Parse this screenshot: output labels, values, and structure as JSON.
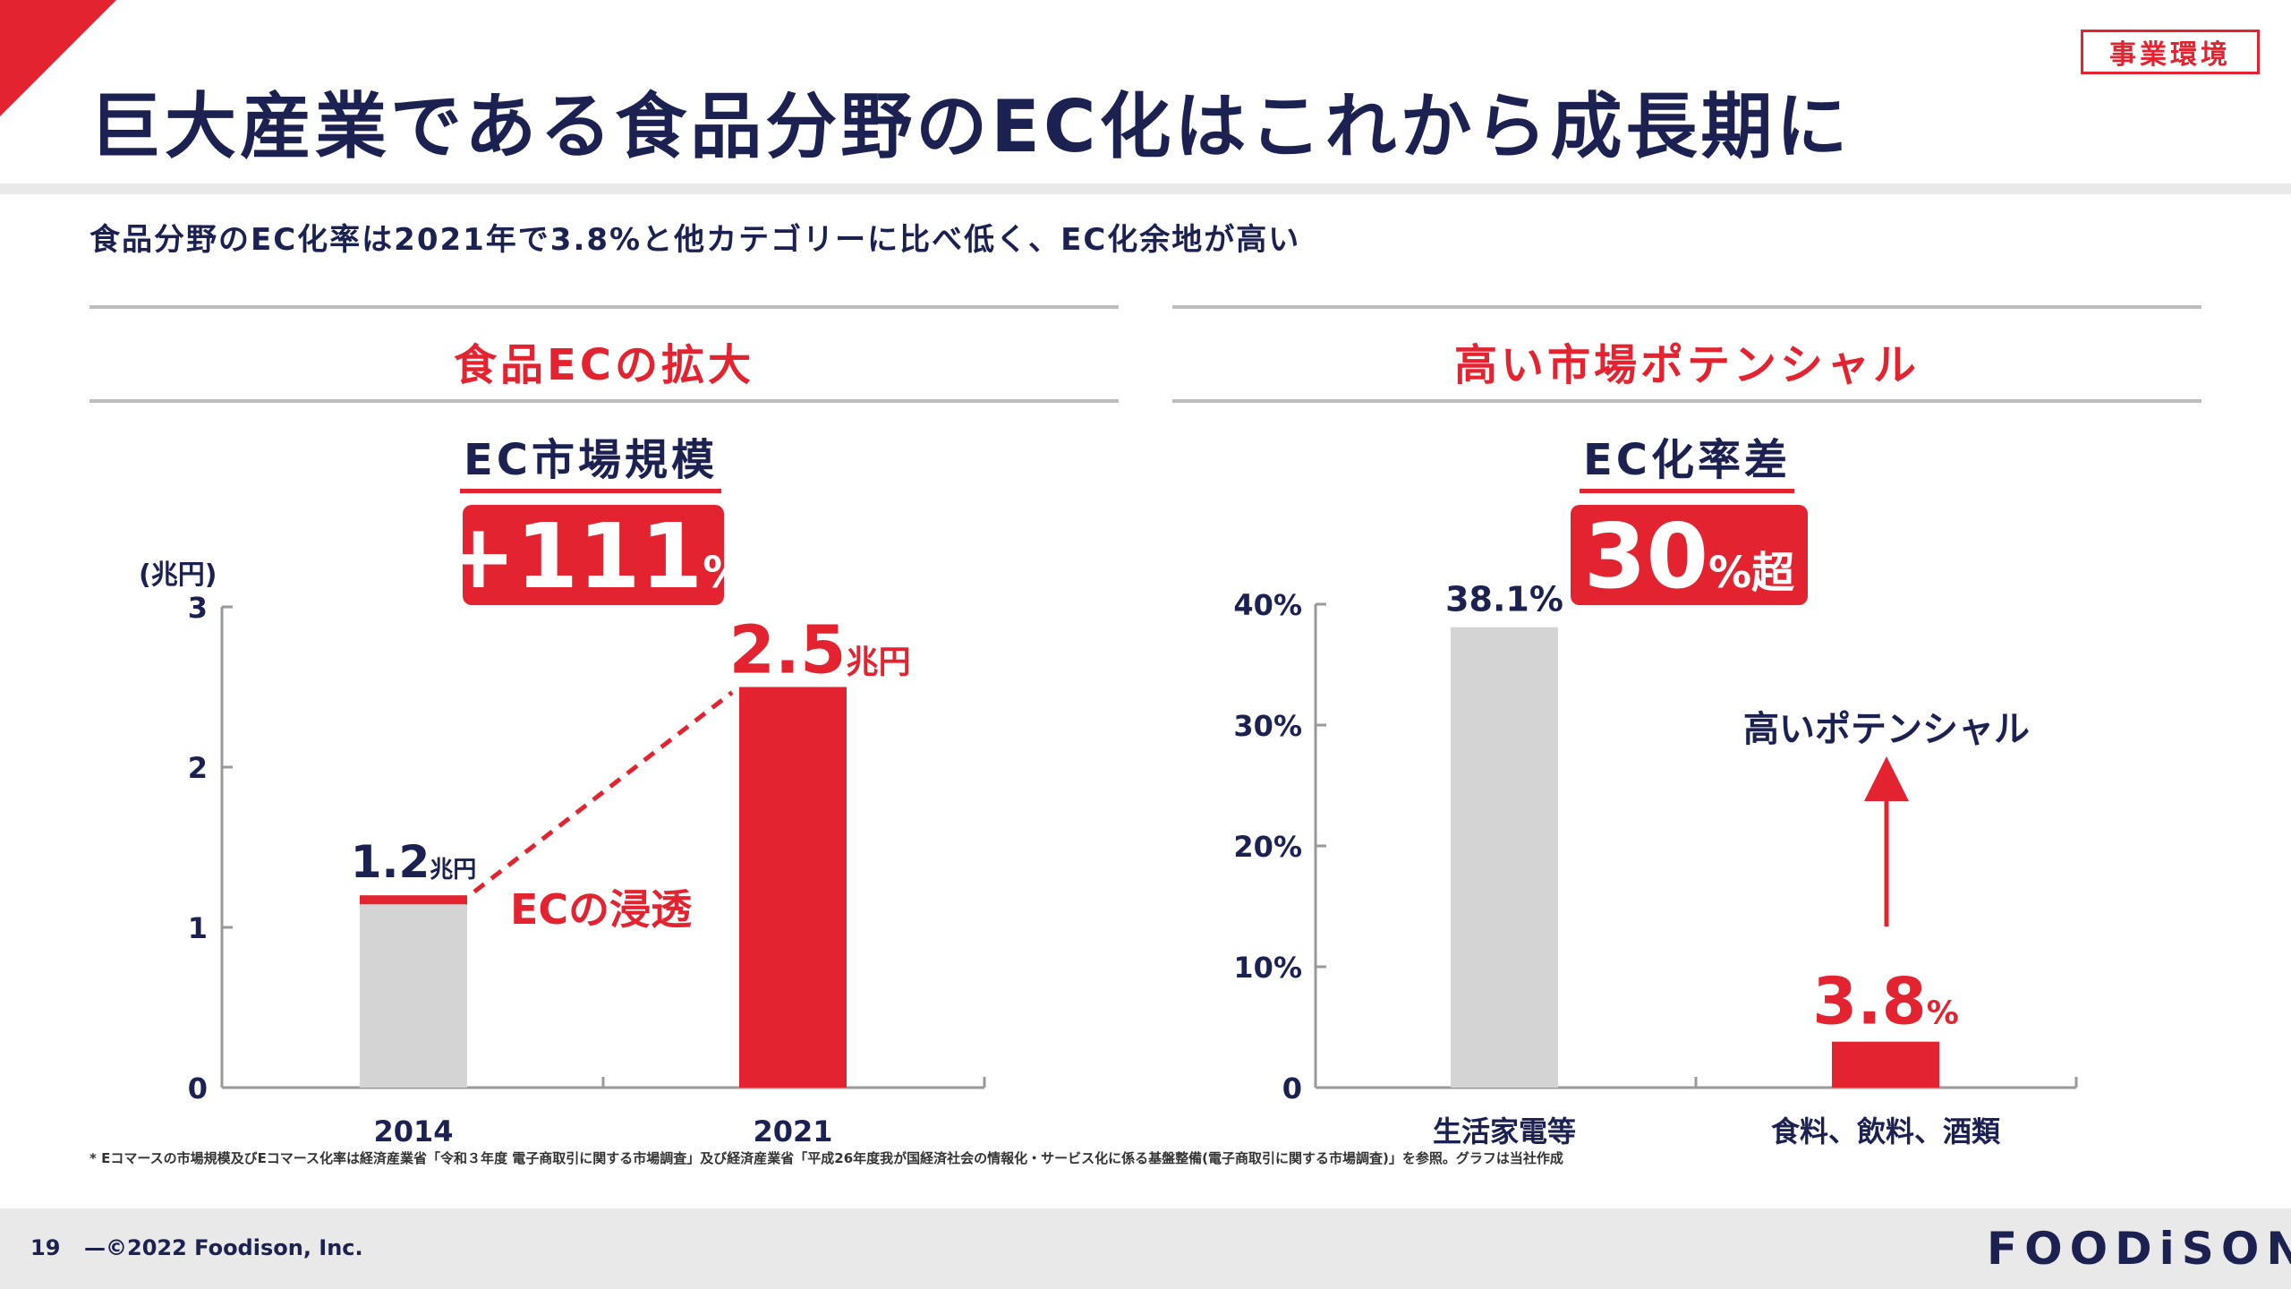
{
  "header": {
    "tag": "事業環境",
    "title": "巨大産業である食品分野のEC化はこれから成長期に",
    "subtitle": "食品分野のEC化率は2021年で3.8%と他カテゴリーに比べ低く、EC化余地が高い"
  },
  "left_panel": {
    "heading": "食品ECの拡大",
    "chart_title": "EC市場規模",
    "badge_value": "+111",
    "badge_unit": "%",
    "unit_label": "(兆円)",
    "bar1_value_label": "1.2",
    "bar1_unit": "兆円",
    "bar2_value_label": "2.5",
    "bar2_unit": "兆円",
    "trend_label": "ECの浸透"
  },
  "right_panel": {
    "heading": "高い市場ポテンシャル",
    "chart_title": "EC化率差",
    "badge_value": "30",
    "badge_unit": "%超",
    "bar1_value_label": "38.1%",
    "bar2_value_label": "3.8",
    "bar2_unit": "%",
    "arrow_label": "高いポテンシャル"
  },
  "chart_data": [
    {
      "type": "bar",
      "title": "EC市場規模",
      "ylabel": "(兆円)",
      "categories": [
        "2014",
        "2021"
      ],
      "values": [
        1.2,
        2.5
      ],
      "ylim": [
        0,
        3
      ],
      "yticks": [
        "0",
        "1",
        "2",
        "3"
      ],
      "colors": [
        "#d4d4d4",
        "#e32430"
      ],
      "highlight_cap": "#e32430"
    },
    {
      "type": "bar",
      "title": "EC化率差",
      "categories": [
        "生活家電等",
        "食料、飲料、酒類"
      ],
      "values": [
        38.1,
        3.8
      ],
      "ylim": [
        0,
        40
      ],
      "yticks": [
        "0",
        "10%",
        "20%",
        "30%",
        "40%"
      ],
      "colors": [
        "#d4d4d4",
        "#e32430"
      ]
    }
  ],
  "footer": {
    "footnote": "* Eコマースの市場規模及びEコマース化率は経済産業省「令和３年度 電子商取引に関する市場調査」及び経済産業省「平成26年度我が国経済社会の情報化・サービス化に係る基盤整備(電子商取引に関する市場調査)」を参照。グラフは当社作成",
    "page_number": "19",
    "copyright": "—©2022 Foodison, Inc.",
    "logo": "FOODiSON"
  },
  "colors": {
    "accent": "#e32430",
    "navy": "#1b2150",
    "gray_bar": "#d4d4d4"
  }
}
